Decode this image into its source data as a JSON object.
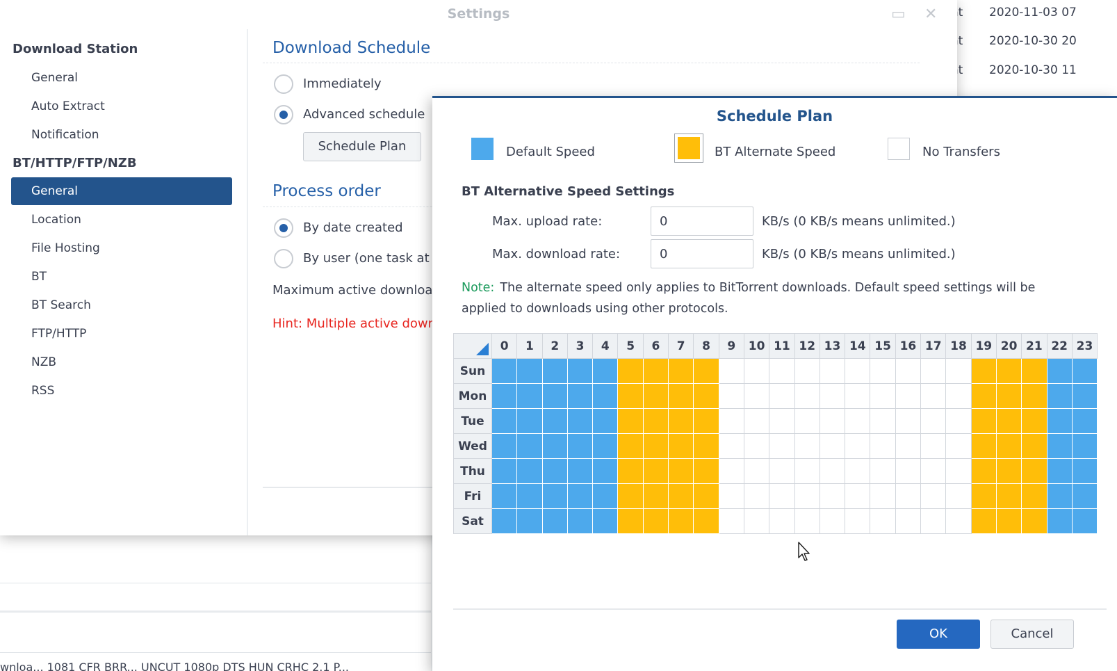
{
  "background": {
    "rows": [
      {
        "name": "torrent",
        "date": "2020-11-03 07"
      },
      {
        "name": "torrent",
        "date": "2020-10-30 20"
      },
      {
        "name": "torrent",
        "date": "2020-10-30 11"
      }
    ],
    "bottom_text": "wnloa... 1081 CFR BRR... UNCUT 1080p DTS HUN CRHC 2.1 P..."
  },
  "settings": {
    "title": "Settings",
    "sidebar": {
      "group1": "Download Station",
      "group1_items": [
        "General",
        "Auto Extract",
        "Notification"
      ],
      "group2": "BT/HTTP/FTP/NZB",
      "group2_items": [
        "General",
        "Location",
        "File Hosting",
        "BT",
        "BT Search",
        "FTP/HTTP",
        "NZB",
        "RSS"
      ],
      "active_item": "General"
    },
    "download_schedule": {
      "title": "Download Schedule",
      "opt_immediately": "Immediately",
      "opt_advanced": "Advanced schedule",
      "schedule_plan_button": "Schedule Plan"
    },
    "process_order": {
      "title": "Process order",
      "opt_date": "By date created",
      "opt_user": "By user (one task at",
      "max_active": "Maximum active downloa",
      "hint": "Hint: Multiple active down"
    }
  },
  "dialog": {
    "title": "Schedule Plan",
    "legend": {
      "default": "Default Speed",
      "alternate": "BT Alternate Speed",
      "none": "No Transfers"
    },
    "bt_section_title": "BT Alternative Speed Settings",
    "upload_label": "Max. upload rate:",
    "upload_value": "0",
    "download_label": "Max. download rate:",
    "download_value": "0",
    "unit_text": "KB/s (0 KB/s means unlimited.)",
    "note_label": "Note:",
    "note_text": "The alternate speed only applies to BitTorrent downloads. Default speed settings will be applied to downloads using other protocols.",
    "hours": [
      "0",
      "1",
      "2",
      "3",
      "4",
      "5",
      "6",
      "7",
      "8",
      "9",
      "10",
      "11",
      "12",
      "13",
      "14",
      "15",
      "16",
      "17",
      "18",
      "19",
      "20",
      "21",
      "22",
      "23"
    ],
    "days": [
      "Sun",
      "Mon",
      "Tue",
      "Wed",
      "Thu",
      "Fri",
      "Sat"
    ],
    "row_pattern": [
      "default",
      "default",
      "default",
      "default",
      "default",
      "alt",
      "alt",
      "alt",
      "alt",
      "none",
      "none",
      "none",
      "none",
      "none",
      "none",
      "none",
      "none",
      "none",
      "none",
      "alt",
      "alt",
      "alt",
      "default",
      "default"
    ],
    "ok_button": "OK",
    "cancel_button": "Cancel",
    "colors": {
      "default": "#4da9ec",
      "alt": "#ffbe09",
      "none": "#ffffff"
    }
  }
}
